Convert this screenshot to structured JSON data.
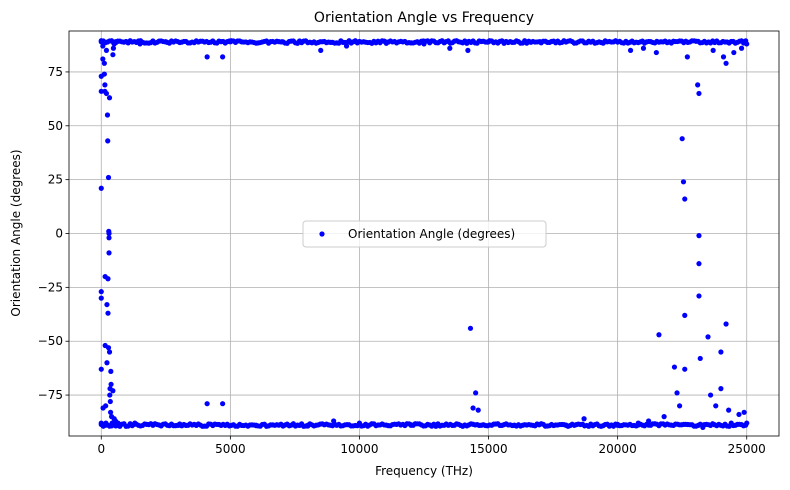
{
  "chart_data": {
    "type": "scatter",
    "title": "Orientation Angle vs Frequency",
    "xlabel": "Frequency (THz)",
    "ylabel": "Orientation Angle (degrees)",
    "xlim": [
      -1250,
      26250
    ],
    "ylim": [
      -94,
      94
    ],
    "xticks": [
      0,
      5000,
      10000,
      15000,
      20000,
      25000
    ],
    "yticks": [
      75,
      50,
      25,
      0,
      -25,
      -50,
      -75
    ],
    "grid": true,
    "legend_position": "center",
    "colors": {
      "series": "#0000ff",
      "grid": "#b0b0b0"
    },
    "series": [
      {
        "name": "Orientation Angle (degrees)",
        "points": [
          [
            0,
            89
          ],
          [
            0,
            73
          ],
          [
            0,
            66
          ],
          [
            0,
            21
          ],
          [
            0,
            -27
          ],
          [
            0,
            -30
          ],
          [
            0,
            -63
          ],
          [
            0,
            -88
          ],
          [
            60,
            87
          ],
          [
            60,
            81
          ],
          [
            70,
            -81
          ],
          [
            80,
            -89
          ],
          [
            120,
            79
          ],
          [
            120,
            74
          ],
          [
            140,
            69
          ],
          [
            140,
            66
          ],
          [
            150,
            -20
          ],
          [
            150,
            -52
          ],
          [
            170,
            -80
          ],
          [
            180,
            -88
          ],
          [
            200,
            85
          ],
          [
            200,
            65
          ],
          [
            220,
            -60
          ],
          [
            220,
            -33
          ],
          [
            240,
            55
          ],
          [
            250,
            43
          ],
          [
            260,
            -21
          ],
          [
            260,
            -37
          ],
          [
            280,
            26
          ],
          [
            280,
            -53
          ],
          [
            290,
            1
          ],
          [
            300,
            0
          ],
          [
            300,
            -2
          ],
          [
            300,
            -9
          ],
          [
            320,
            63
          ],
          [
            320,
            -55
          ],
          [
            330,
            -75
          ],
          [
            340,
            -72
          ],
          [
            350,
            -78
          ],
          [
            360,
            -83
          ],
          [
            370,
            -64
          ],
          [
            380,
            -70
          ],
          [
            400,
            -85
          ],
          [
            420,
            -88
          ],
          [
            450,
            83
          ],
          [
            450,
            -73
          ],
          [
            470,
            86
          ],
          [
            500,
            88
          ],
          [
            500,
            -86
          ],
          [
            550,
            89
          ],
          [
            550,
            -87
          ],
          [
            600,
            89
          ],
          [
            650,
            -88
          ],
          [
            700,
            -89
          ],
          [
            1300,
            -88
          ],
          [
            1500,
            88
          ],
          [
            2000,
            -89
          ],
          [
            2500,
            89
          ],
          [
            3000,
            -89
          ],
          [
            4100,
            82
          ],
          [
            4100,
            -79
          ],
          [
            4700,
            82
          ],
          [
            4700,
            -79
          ],
          [
            5000,
            89
          ],
          [
            6000,
            -89
          ],
          [
            7000,
            89
          ],
          [
            8000,
            -89
          ],
          [
            8500,
            85
          ],
          [
            9000,
            -87
          ],
          [
            9500,
            87
          ],
          [
            10000,
            -88
          ],
          [
            11000,
            89
          ],
          [
            12000,
            -89
          ],
          [
            12500,
            88
          ],
          [
            13500,
            86
          ],
          [
            14200,
            85
          ],
          [
            14300,
            -44
          ],
          [
            14400,
            -81
          ],
          [
            14500,
            -74
          ],
          [
            14600,
            -82
          ],
          [
            15000,
            89
          ],
          [
            16000,
            -89
          ],
          [
            17000,
            89
          ],
          [
            18000,
            -89
          ],
          [
            18700,
            -86
          ],
          [
            19500,
            89
          ],
          [
            20000,
            -89
          ],
          [
            20500,
            85
          ],
          [
            20800,
            -88
          ],
          [
            21000,
            86
          ],
          [
            21200,
            -87
          ],
          [
            21500,
            84
          ],
          [
            21600,
            -47
          ],
          [
            21800,
            -85
          ],
          [
            22200,
            -62
          ],
          [
            22300,
            -74
          ],
          [
            22400,
            -80
          ],
          [
            22500,
            44
          ],
          [
            22550,
            24
          ],
          [
            22600,
            16
          ],
          [
            22600,
            -38
          ],
          [
            22600,
            -63
          ],
          [
            22700,
            82
          ],
          [
            23100,
            69
          ],
          [
            23150,
            65
          ],
          [
            23150,
            -1
          ],
          [
            23150,
            -14
          ],
          [
            23150,
            -29
          ],
          [
            23200,
            -58
          ],
          [
            23300,
            -90
          ],
          [
            23500,
            -48
          ],
          [
            23600,
            -75
          ],
          [
            23700,
            85
          ],
          [
            23800,
            -80
          ],
          [
            24000,
            -55
          ],
          [
            24000,
            -72
          ],
          [
            24100,
            82
          ],
          [
            24200,
            -42
          ],
          [
            24200,
            79
          ],
          [
            24300,
            -82
          ],
          [
            24400,
            -88
          ],
          [
            24500,
            84
          ],
          [
            24700,
            -84
          ],
          [
            24800,
            86
          ],
          [
            24900,
            -83
          ],
          [
            25000,
            88
          ],
          [
            25000,
            -88
          ]
        ],
        "bands": [
          {
            "x_from": 0,
            "x_to": 25000,
            "y": 89.5,
            "spread": 1.2
          },
          {
            "x_from": 0,
            "x_to": 25000,
            "y": -89.5,
            "spread": 1.2
          }
        ]
      }
    ]
  }
}
